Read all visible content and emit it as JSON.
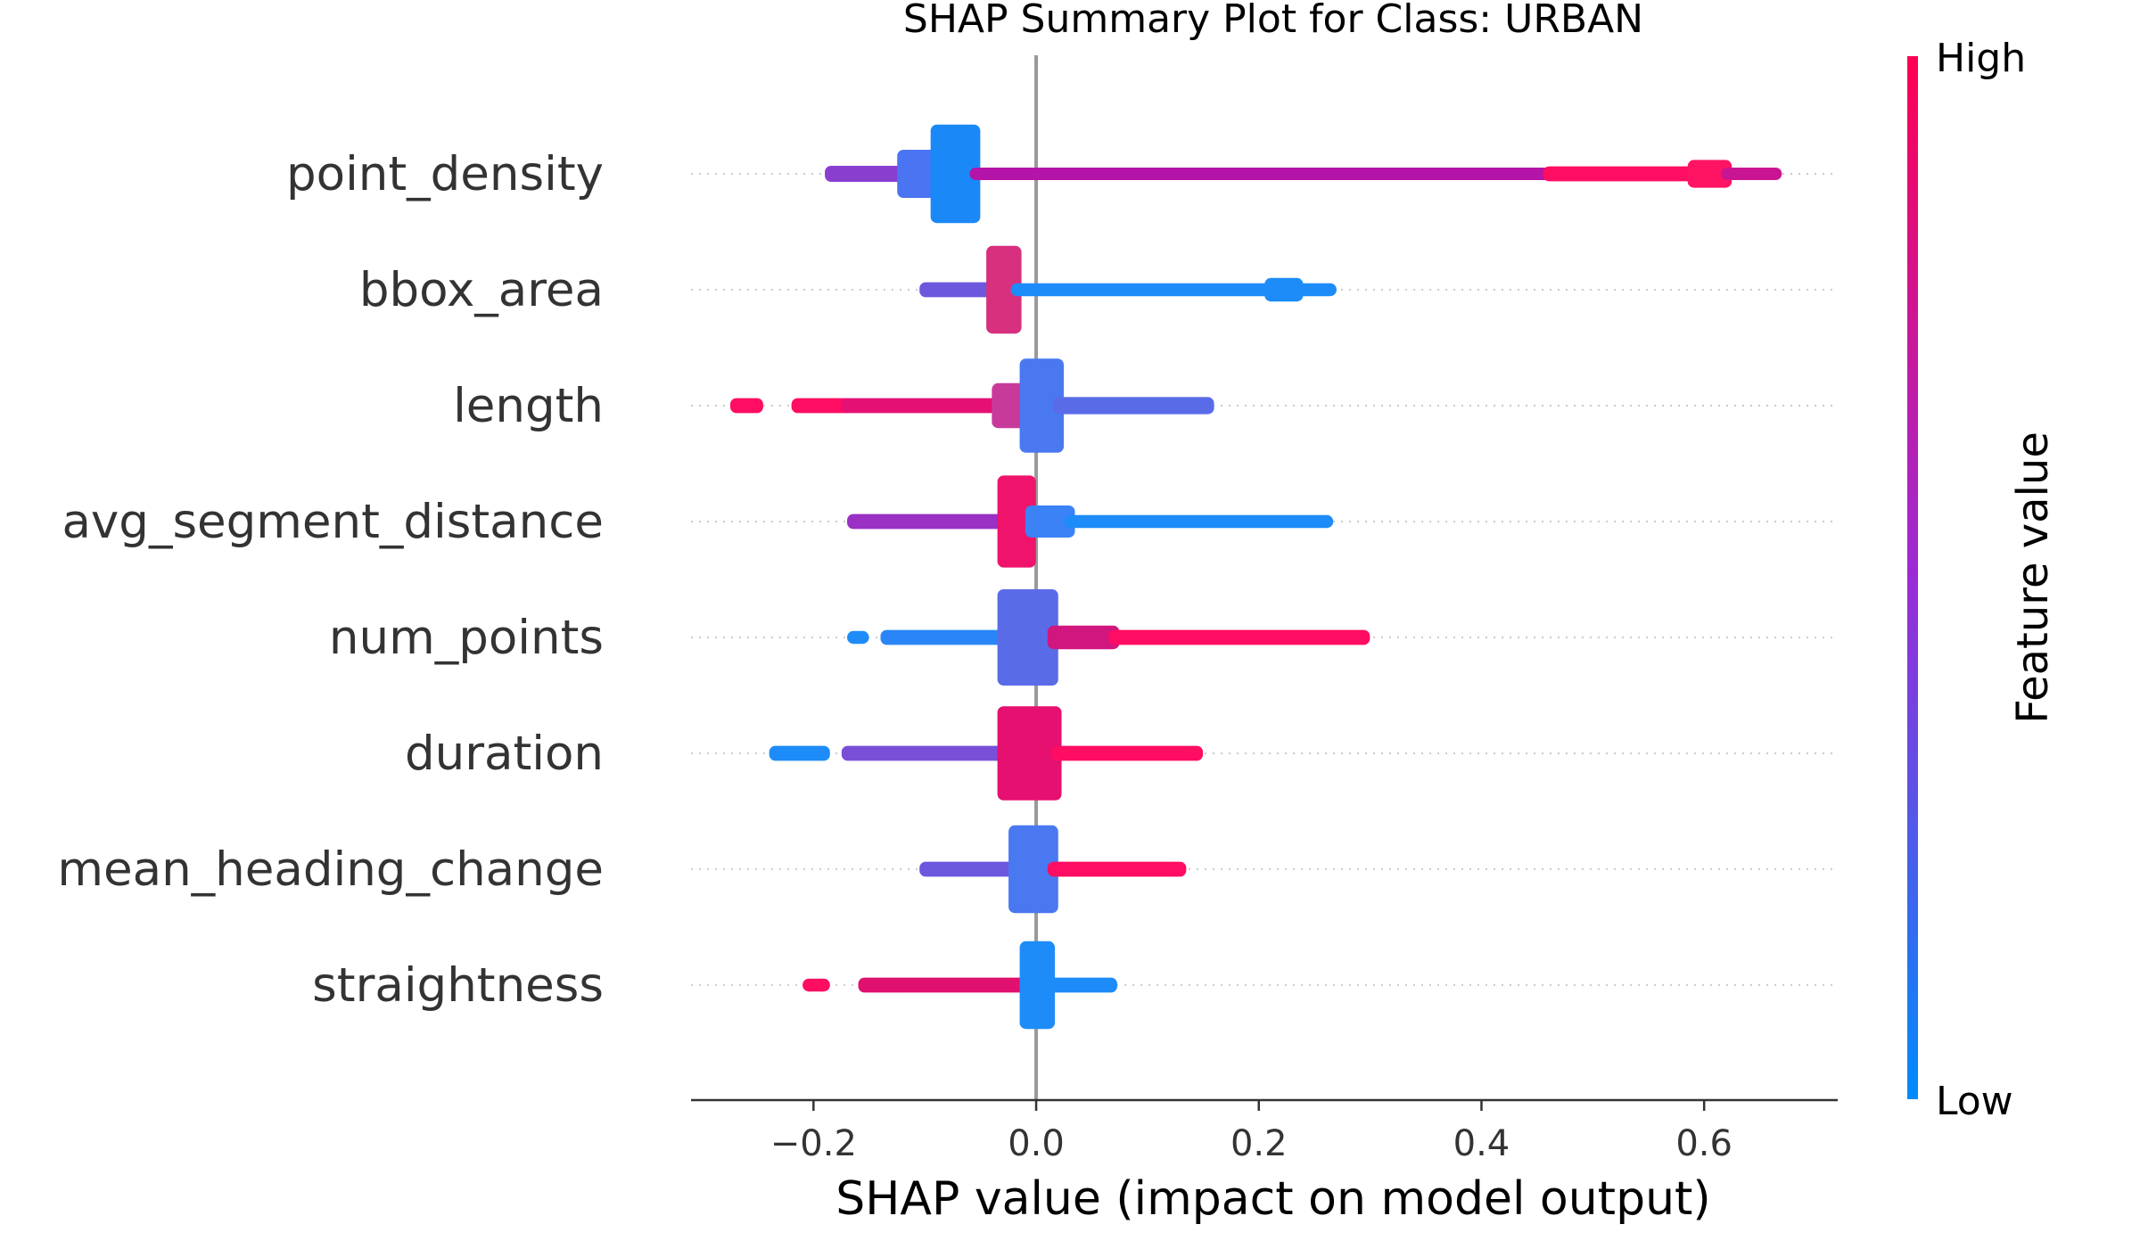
{
  "chart_data": {
    "type": "scatter",
    "title": "SHAP Summary Plot for Class: URBAN",
    "xlabel": "SHAP value (impact on model output)",
    "xlim": [
      -0.31,
      0.72
    ],
    "xticks": [
      {
        "value": -0.2,
        "label": "−0.2"
      },
      {
        "value": 0.0,
        "label": "0.0"
      },
      {
        "value": 0.2,
        "label": "0.2"
      },
      {
        "value": 0.4,
        "label": "0.4"
      },
      {
        "value": 0.6,
        "label": "0.6"
      }
    ],
    "colorbar": {
      "label": "Feature value",
      "high_label": "High",
      "low_label": "Low",
      "high_color": "#ff0052",
      "low_color": "#008bfb"
    },
    "features": [
      {
        "name": "point_density",
        "segments": [
          {
            "from": -0.185,
            "to": -0.12,
            "width": 0.15,
            "color": "#8a3ed0"
          },
          {
            "from": -0.12,
            "to": -0.09,
            "width": 0.45,
            "color": "#4b74f2"
          },
          {
            "from": -0.09,
            "to": -0.055,
            "width": 0.92,
            "color": "#1b88f8"
          },
          {
            "from": -0.055,
            "to": 0.46,
            "width": 0.1,
            "color": "#b414a8"
          },
          {
            "from": 0.46,
            "to": 0.59,
            "width": 0.14,
            "color": "#ff0d62"
          },
          {
            "from": 0.59,
            "to": 0.62,
            "width": 0.26,
            "color": "#ff1463"
          },
          {
            "from": 0.62,
            "to": 0.665,
            "width": 0.1,
            "color": "#ca1593"
          }
        ]
      },
      {
        "name": "bbox_area",
        "segments": [
          {
            "from": -0.1,
            "to": -0.04,
            "width": 0.14,
            "color": "#6b58dd"
          },
          {
            "from": -0.04,
            "to": -0.018,
            "width": 0.82,
            "color": "#d7307e"
          },
          {
            "from": -0.018,
            "to": 0.21,
            "width": 0.12,
            "color": "#1d8cf8"
          },
          {
            "from": 0.21,
            "to": 0.235,
            "width": 0.22,
            "color": "#1d8cf8"
          },
          {
            "from": 0.235,
            "to": 0.265,
            "width": 0.12,
            "color": "#1d8cf8"
          }
        ]
      },
      {
        "name": "length",
        "segments": [
          {
            "from": -0.27,
            "to": -0.25,
            "width": 0.14,
            "color": "#ff0d62"
          },
          {
            "from": -0.215,
            "to": -0.17,
            "width": 0.14,
            "color": "#ff0d62"
          },
          {
            "from": -0.17,
            "to": -0.035,
            "width": 0.14,
            "color": "#e51074"
          },
          {
            "from": -0.035,
            "to": -0.01,
            "width": 0.42,
            "color": "#c83a9a"
          },
          {
            "from": -0.01,
            "to": 0.02,
            "width": 0.88,
            "color": "#4a78f0"
          },
          {
            "from": 0.02,
            "to": 0.155,
            "width": 0.16,
            "color": "#5a6be8"
          }
        ]
      },
      {
        "name": "avg_segment_distance",
        "segments": [
          {
            "from": -0.165,
            "to": -0.03,
            "width": 0.14,
            "color": "#9a30c4"
          },
          {
            "from": -0.03,
            "to": -0.005,
            "width": 0.86,
            "color": "#f0136c"
          },
          {
            "from": -0.005,
            "to": 0.03,
            "width": 0.3,
            "color": "#3a82f6"
          },
          {
            "from": 0.03,
            "to": 0.262,
            "width": 0.12,
            "color": "#1d8cf8"
          }
        ]
      },
      {
        "name": "num_points",
        "segments": [
          {
            "from": -0.165,
            "to": -0.155,
            "width": 0.12,
            "color": "#1d8cf8"
          },
          {
            "from": -0.135,
            "to": -0.03,
            "width": 0.14,
            "color": "#2a86f6"
          },
          {
            "from": -0.03,
            "to": 0.015,
            "width": 0.9,
            "color": "#5a6be8"
          },
          {
            "from": 0.015,
            "to": 0.07,
            "width": 0.22,
            "color": "#d2167f"
          },
          {
            "from": 0.07,
            "to": 0.295,
            "width": 0.14,
            "color": "#ff0d62"
          }
        ]
      },
      {
        "name": "duration",
        "segments": [
          {
            "from": -0.235,
            "to": -0.19,
            "width": 0.14,
            "color": "#1d8cf8"
          },
          {
            "from": -0.17,
            "to": -0.03,
            "width": 0.14,
            "color": "#7a4fd8"
          },
          {
            "from": -0.03,
            "to": 0.018,
            "width": 0.88,
            "color": "#e5106f"
          },
          {
            "from": 0.018,
            "to": 0.145,
            "width": 0.14,
            "color": "#ff0d62"
          }
        ]
      },
      {
        "name": "mean_heading_change",
        "segments": [
          {
            "from": -0.1,
            "to": -0.02,
            "width": 0.14,
            "color": "#6b58dd"
          },
          {
            "from": -0.02,
            "to": 0.015,
            "width": 0.82,
            "color": "#4a78f0"
          },
          {
            "from": 0.015,
            "to": 0.13,
            "width": 0.14,
            "color": "#ff0d62"
          }
        ]
      },
      {
        "name": "straightness",
        "segments": [
          {
            "from": -0.205,
            "to": -0.19,
            "width": 0.12,
            "color": "#ff0d62"
          },
          {
            "from": -0.155,
            "to": -0.01,
            "width": 0.14,
            "color": "#e0106f"
          },
          {
            "from": -0.01,
            "to": 0.012,
            "width": 0.82,
            "color": "#1d8cf8"
          },
          {
            "from": 0.012,
            "to": 0.068,
            "width": 0.14,
            "color": "#1d8cf8"
          }
        ]
      }
    ]
  }
}
